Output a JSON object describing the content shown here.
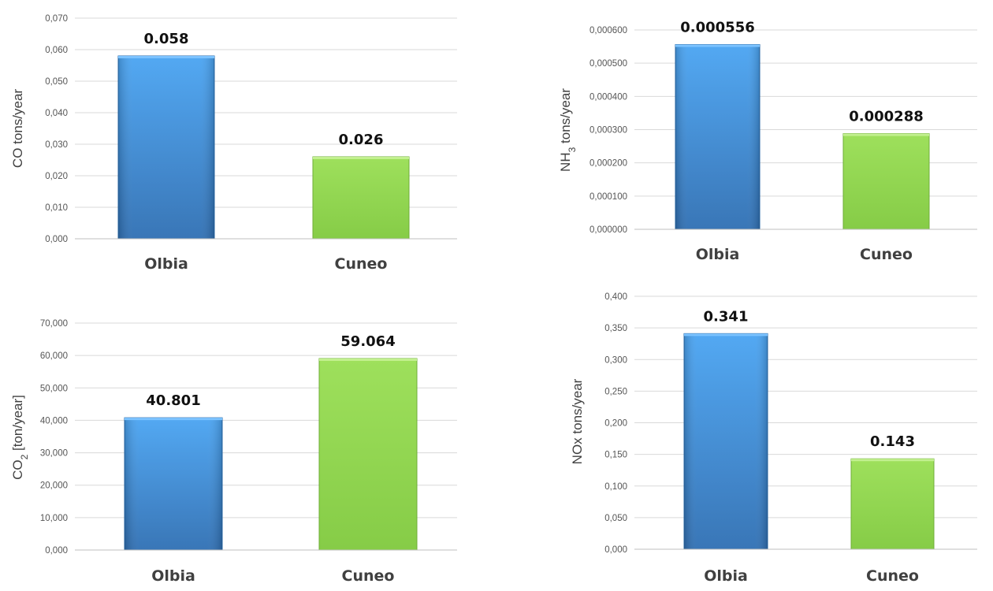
{
  "chart_data": [
    {
      "id": "co",
      "type": "bar",
      "categories": [
        "Olbia",
        "Cuneo"
      ],
      "values": [
        0.058,
        0.026
      ],
      "data_labels": [
        "0.058",
        "0.026"
      ],
      "ylabel": "CO tons/year",
      "ylim": [
        0,
        0.07
      ],
      "yticks": [
        "0,000",
        "0,010",
        "0,020",
        "0,030",
        "0,040",
        "0,050",
        "0,060",
        "0,070"
      ],
      "grid": true,
      "colors": [
        "#3f8fdc",
        "#8ed64f"
      ]
    },
    {
      "id": "nh3",
      "type": "bar",
      "categories": [
        "Olbia",
        "Cuneo"
      ],
      "values": [
        0.000556,
        0.000288
      ],
      "data_labels": [
        "0.000556",
        "0.000288"
      ],
      "ylabel_main": "NH",
      "ylabel_sub": "3",
      "ylabel_rest": " tons/year",
      "ylim": [
        0,
        0.0006
      ],
      "yticks": [
        "0,000000",
        "0,000100",
        "0,000200",
        "0,000300",
        "0,000400",
        "0,000500",
        "0,000600"
      ],
      "grid": true,
      "colors": [
        "#3f8fdc",
        "#8ed64f"
      ]
    },
    {
      "id": "co2",
      "type": "bar",
      "categories": [
        "Olbia",
        "Cuneo"
      ],
      "values": [
        40.801,
        59.064
      ],
      "data_labels": [
        "40.801",
        "59.064"
      ],
      "ylabel_main": "CO",
      "ylabel_sub": "2",
      "ylabel_rest": " [ton/year]",
      "ylim": [
        0,
        70
      ],
      "yticks": [
        "0,000",
        "10,000",
        "20,000",
        "30,000",
        "40,000",
        "50,000",
        "60,000",
        "70,000"
      ],
      "grid": true,
      "colors": [
        "#3f8fdc",
        "#8ed64f"
      ]
    },
    {
      "id": "nox",
      "type": "bar",
      "categories": [
        "Olbia",
        "Cuneo"
      ],
      "values": [
        0.341,
        0.143
      ],
      "data_labels": [
        "0.341",
        "0.143"
      ],
      "ylabel": "NOx tons/year",
      "ylim": [
        0,
        0.4
      ],
      "yticks": [
        "0,000",
        "0,050",
        "0,100",
        "0,150",
        "0,200",
        "0,250",
        "0,300",
        "0,350",
        "0,400"
      ],
      "grid": true,
      "colors": [
        "#3f8fdc",
        "#8ed64f"
      ]
    }
  ]
}
